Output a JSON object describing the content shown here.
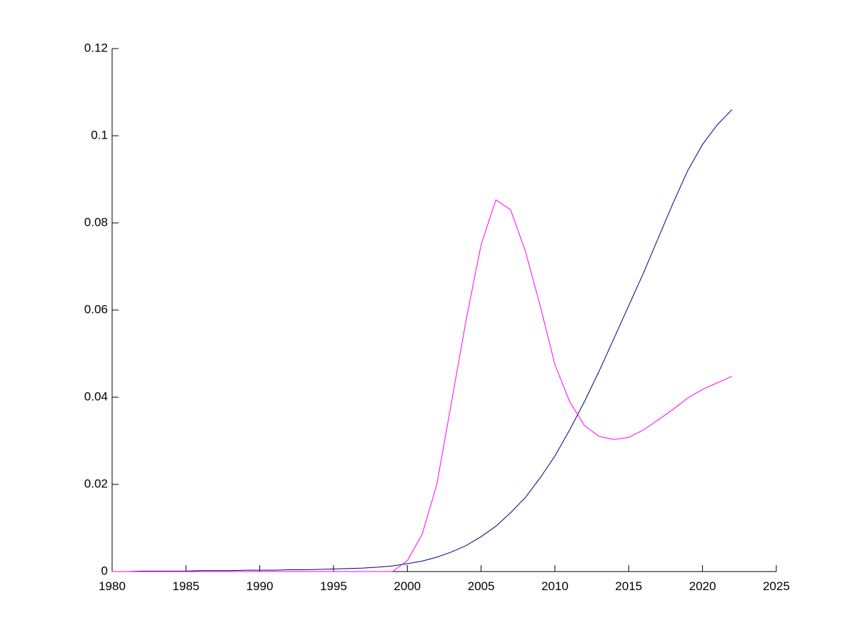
{
  "chart_data": {
    "type": "line",
    "x": [
      1980,
      1981,
      1982,
      1983,
      1984,
      1985,
      1986,
      1987,
      1988,
      1989,
      1990,
      1991,
      1992,
      1993,
      1994,
      1995,
      1996,
      1997,
      1998,
      1999,
      2000,
      2001,
      2002,
      2003,
      2004,
      2005,
      2006,
      2007,
      2008,
      2009,
      2010,
      2011,
      2012,
      2013,
      2014,
      2015,
      2016,
      2017,
      2018,
      2019,
      2020,
      2021,
      2022
    ],
    "series": [
      {
        "color": "#00007f",
        "values": [
          0,
          0,
          0.0001,
          0.0001,
          0.0001,
          0.0001,
          0.0002,
          0.0002,
          0.0002,
          0.0003,
          0.0003,
          0.0003,
          0.0004,
          0.0004,
          0.0005,
          0.0006,
          0.0007,
          0.0008,
          0.001,
          0.0013,
          0.0018,
          0.0024,
          0.0033,
          0.0045,
          0.006,
          0.008,
          0.0104,
          0.0135,
          0.017,
          0.0215,
          0.0265,
          0.0325,
          0.039,
          0.046,
          0.0535,
          0.061,
          0.0685,
          0.0765,
          0.0845,
          0.092,
          0.098,
          0.1025,
          0.106
        ]
      },
      {
        "color": "#ff00ff",
        "values": [
          0,
          0,
          0,
          0,
          0,
          0,
          0,
          0,
          0,
          0,
          0,
          0,
          0,
          0,
          0,
          0,
          0,
          0,
          0,
          0,
          0.0025,
          0.0085,
          0.02,
          0.039,
          0.058,
          0.075,
          0.0853,
          0.083,
          0.0735,
          0.061,
          0.0475,
          0.039,
          0.0335,
          0.031,
          0.0303,
          0.0308,
          0.0325,
          0.0348,
          0.0372,
          0.0398,
          0.0418,
          0.0433,
          0.0448
        ]
      }
    ],
    "xlim": [
      1980,
      2025
    ],
    "xticks": [
      1980,
      1985,
      1990,
      1995,
      2000,
      2005,
      2010,
      2015,
      2020,
      2025
    ],
    "ylim": [
      0,
      0.12
    ],
    "yticks": [
      0,
      0.02,
      0.04,
      0.06,
      0.08,
      0.1,
      0.12
    ]
  }
}
